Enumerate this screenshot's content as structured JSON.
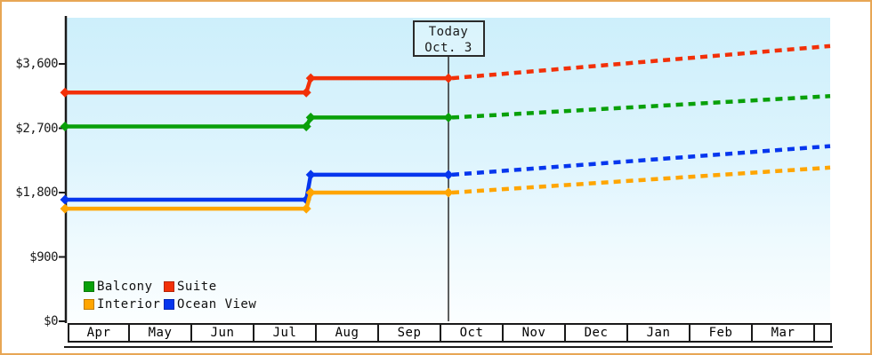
{
  "today_marker": {
    "line1": "Today",
    "line2": "Oct. 3"
  },
  "legend": {
    "items": [
      {
        "label": "Balcony",
        "color": "#09a009"
      },
      {
        "label": "Suite",
        "color": "#f23008"
      },
      {
        "label": "Interior",
        "color": "#ffa500"
      },
      {
        "label": "Ocean View",
        "color": "#0636ee"
      }
    ]
  },
  "colors": {
    "frame_border": "#e8a654",
    "axis": "#1a1a1a",
    "today_line": "#2a2a2a",
    "plot_bg_top": "#cdeffb",
    "plot_bg_bottom": "#fbfeff"
  },
  "chart_data": {
    "type": "line",
    "title": "",
    "x_axis": {
      "months": [
        "Apr",
        "May",
        "Jun",
        "Jul",
        "Aug",
        "Sep",
        "Oct",
        "Nov",
        "Dec",
        "Jan",
        "Feb",
        "Mar"
      ]
    },
    "y_axis": {
      "ticks": [
        {
          "label": "$0",
          "value": 0
        },
        {
          "label": "$900",
          "value": 900
        },
        {
          "label": "$1,800",
          "value": 1800
        },
        {
          "label": "$2,700",
          "value": 2700
        },
        {
          "label": "$3,600",
          "value": 3600
        }
      ],
      "range": [
        0,
        4000
      ]
    },
    "today": {
      "month": "Oct",
      "day": 3,
      "label": "Today Oct. 3"
    },
    "step_change": {
      "month": "Jul",
      "day": 27
    },
    "legend_position": "inside-bottom-left",
    "grid": false,
    "series": [
      {
        "name": "Suite",
        "color": "#f23008",
        "initial_value": 3200,
        "stepped_value": 3400,
        "value_at_today": 3400,
        "projected_value_end": 3850
      },
      {
        "name": "Balcony",
        "color": "#09a009",
        "initial_value": 2725,
        "stepped_value": 2850,
        "value_at_today": 2850,
        "projected_value_end": 3150
      },
      {
        "name": "Ocean View",
        "color": "#0636ee",
        "initial_value": 1700,
        "stepped_value": 2050,
        "value_at_today": 2050,
        "projected_value_end": 2450
      },
      {
        "name": "Interior",
        "color": "#ffa500",
        "initial_value": 1575,
        "stepped_value": 1800,
        "value_at_today": 1800,
        "projected_value_end": 2150
      }
    ]
  }
}
